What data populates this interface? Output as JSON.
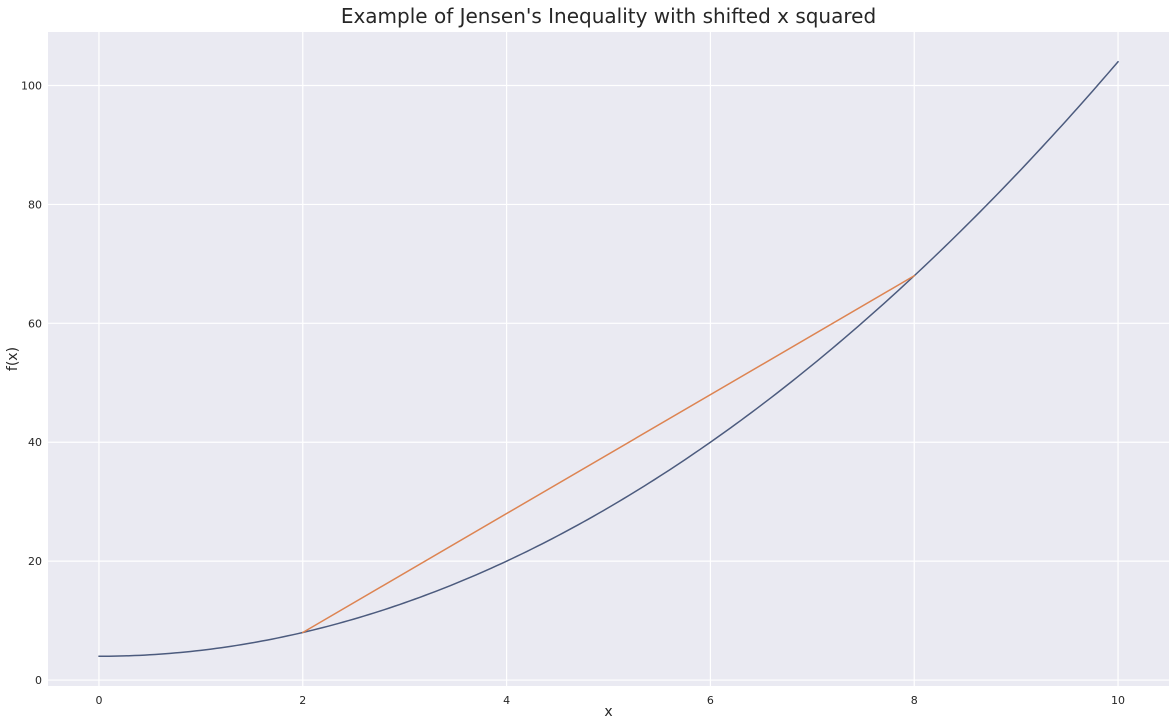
{
  "chart_data": {
    "type": "line",
    "title": "Example of Jensen's Inequality with shifted x squared",
    "xlabel": "x",
    "ylabel": "f(x)",
    "xlim": [
      -0.5,
      10.5
    ],
    "ylim": [
      -1,
      109
    ],
    "xticks": [
      0,
      2,
      4,
      6,
      8,
      10
    ],
    "yticks": [
      0,
      20,
      40,
      60,
      80,
      100
    ],
    "grid": true,
    "legend": "none",
    "colors": {
      "background": "#eaeaf2",
      "grid": "#ffffff",
      "curve": "#4c5b7e",
      "chord": "#dd8452"
    },
    "series": [
      {
        "function": "x^2 + 4",
        "color": "#4c5b7e",
        "x": [
          0,
          0.5,
          1,
          1.5,
          2,
          2.5,
          3,
          3.5,
          4,
          4.5,
          5,
          5.5,
          6,
          6.5,
          7,
          7.5,
          8,
          8.5,
          9,
          9.5,
          10
        ],
        "y": [
          4,
          4.25,
          5,
          6.25,
          8,
          10.25,
          13,
          16.25,
          20,
          24.25,
          29,
          34.25,
          40,
          46.25,
          53,
          60.25,
          68,
          76.25,
          85,
          94.25,
          104
        ]
      },
      {
        "color": "#dd8452",
        "x": [
          2,
          8
        ],
        "y": [
          8,
          68
        ]
      }
    ]
  }
}
